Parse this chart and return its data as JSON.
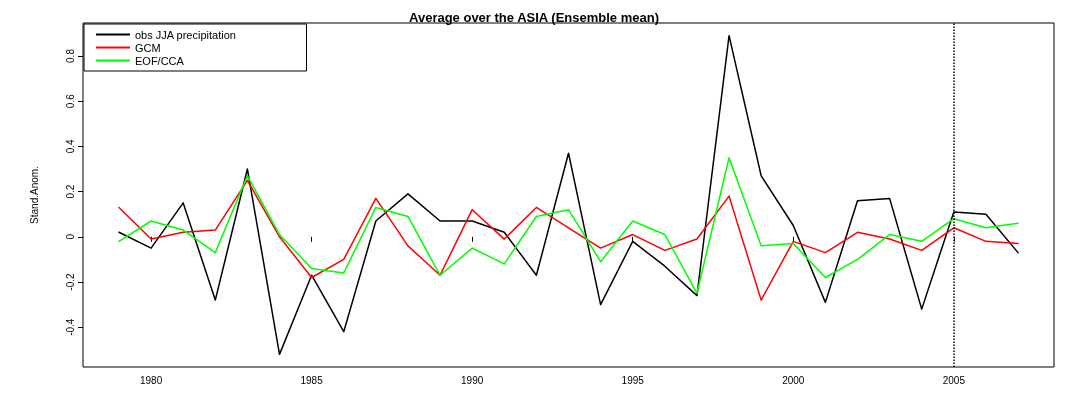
{
  "chart_data": {
    "type": "line",
    "title": "Average over the ASIA (Ensemble mean)",
    "ylabel": "Stand.Anom.",
    "x": [
      1979,
      1980,
      1981,
      1982,
      1983,
      1984,
      1985,
      1986,
      1987,
      1988,
      1989,
      1990,
      1991,
      1992,
      1993,
      1994,
      1995,
      1996,
      1997,
      1998,
      1999,
      2000,
      2001,
      2002,
      2003,
      2004,
      2005,
      2006,
      2007
    ],
    "series": [
      {
        "name": "obs JJA precipitation",
        "color": "#000000",
        "values": [
          0.02,
          -0.05,
          0.15,
          -0.28,
          0.3,
          -0.52,
          -0.17,
          -0.42,
          0.07,
          0.19,
          0.07,
          0.07,
          0.02,
          -0.17,
          0.37,
          -0.3,
          -0.02,
          -0.13,
          -0.26,
          0.89,
          0.27,
          0.05,
          -0.29,
          0.16,
          0.17,
          -0.32,
          0.11,
          0.1,
          -0.07
        ]
      },
      {
        "name": "GCM",
        "color": "#ff0000",
        "values": [
          0.13,
          -0.01,
          0.02,
          0.03,
          0.25,
          0.0,
          -0.18,
          -0.1,
          0.17,
          -0.04,
          -0.17,
          0.12,
          -0.01,
          0.13,
          0.04,
          -0.05,
          0.01,
          -0.06,
          -0.01,
          0.18,
          -0.28,
          -0.02,
          -0.07,
          0.02,
          -0.01,
          -0.06,
          0.04,
          -0.02,
          -0.03
        ]
      },
      {
        "name": "EOF/CCA",
        "color": "#00ff00",
        "values": [
          -0.02,
          0.07,
          0.03,
          -0.07,
          0.27,
          0.01,
          -0.14,
          -0.16,
          0.13,
          0.09,
          -0.17,
          -0.05,
          -0.12,
          0.09,
          0.12,
          -0.11,
          0.07,
          0.01,
          -0.25,
          0.35,
          -0.04,
          -0.03,
          -0.18,
          -0.1,
          0.01,
          -0.02,
          0.08,
          0.04,
          0.06
        ]
      }
    ],
    "xlim": [
      1977.88,
      2008.12
    ],
    "xticks": [
      1980,
      1985,
      1990,
      1995,
      2000,
      2005
    ],
    "ylim": [
      -0.576,
      0.946
    ],
    "yticks": [
      -0.4,
      -0.2,
      0.0,
      0.2,
      0.4,
      0.6,
      0.8
    ],
    "ref_lines": [
      {
        "axis": "x",
        "value": 2005,
        "line_style": "dotted",
        "color": "#000000"
      }
    ],
    "legend": "top left",
    "grid": false,
    "marker": "none",
    "line_style": "solid"
  }
}
